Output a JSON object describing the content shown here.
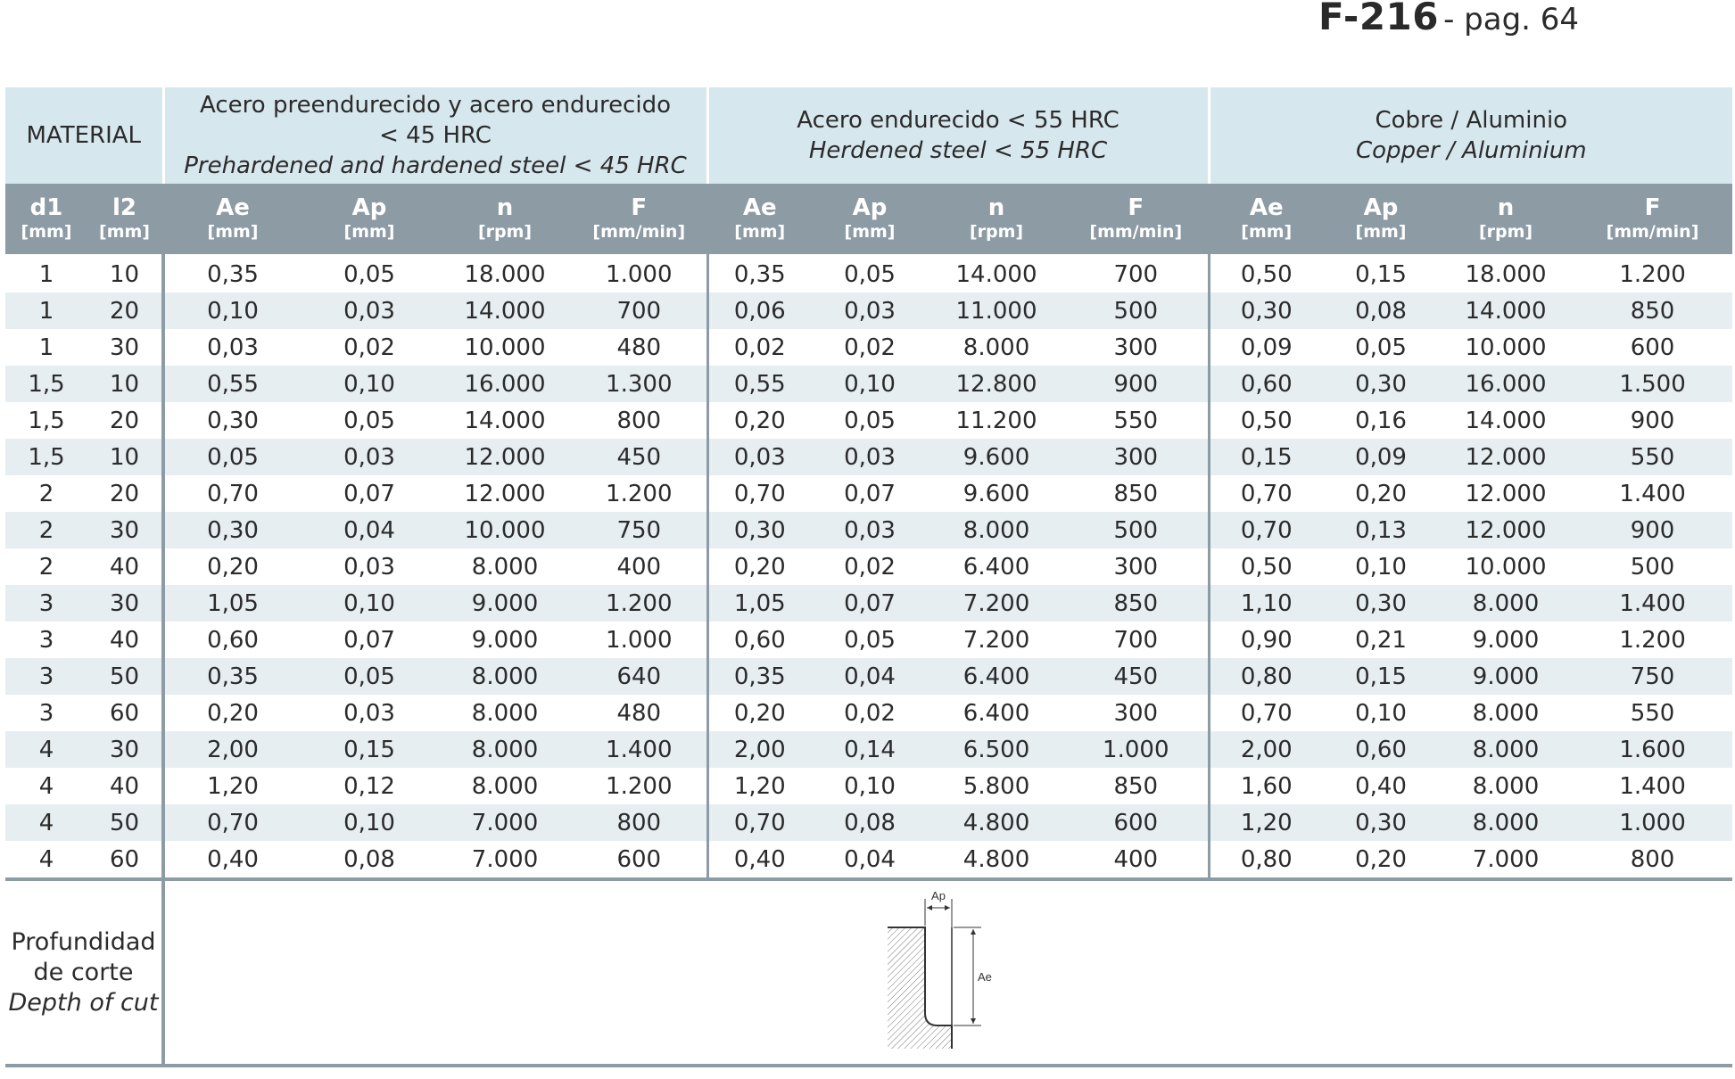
{
  "reference": {
    "code": "F-216",
    "page": "- pag. 64"
  },
  "table": {
    "material_label": "MATERIAL",
    "groups": [
      {
        "line1": "Acero preendurecido y acero endurecido",
        "line2": "< 45 HRC",
        "line3": "Prehardened and hardened steel < 45 HRC"
      },
      {
        "line1": "Acero endurecido < 55 HRC",
        "line2": "",
        "line3": "Herdened steel < 55 HRC"
      },
      {
        "line1": "Cobre / Aluminio",
        "line2": "",
        "line3": "Copper / Aluminium"
      }
    ],
    "columns": [
      {
        "sym": "d1",
        "unit": "[mm]"
      },
      {
        "sym": "l2",
        "unit": "[mm]"
      },
      {
        "sym": "Ae",
        "unit": "[mm]"
      },
      {
        "sym": "Ap",
        "unit": "[mm]"
      },
      {
        "sym": "n",
        "unit": "[rpm]"
      },
      {
        "sym": "F",
        "unit": "[mm/min]"
      }
    ],
    "rows": [
      [
        "1",
        "10",
        "0,35",
        "0,05",
        "18.000",
        "1.000",
        "0,35",
        "0,05",
        "14.000",
        "700",
        "0,50",
        "0,15",
        "18.000",
        "1.200"
      ],
      [
        "1",
        "20",
        "0,10",
        "0,03",
        "14.000",
        "700",
        "0,06",
        "0,03",
        "11.000",
        "500",
        "0,30",
        "0,08",
        "14.000",
        "850"
      ],
      [
        "1",
        "30",
        "0,03",
        "0,02",
        "10.000",
        "480",
        "0,02",
        "0,02",
        "8.000",
        "300",
        "0,09",
        "0,05",
        "10.000",
        "600"
      ],
      [
        "1,5",
        "10",
        "0,55",
        "0,10",
        "16.000",
        "1.300",
        "0,55",
        "0,10",
        "12.800",
        "900",
        "0,60",
        "0,30",
        "16.000",
        "1.500"
      ],
      [
        "1,5",
        "20",
        "0,30",
        "0,05",
        "14.000",
        "800",
        "0,20",
        "0,05",
        "11.200",
        "550",
        "0,50",
        "0,16",
        "14.000",
        "900"
      ],
      [
        "1,5",
        "10",
        "0,05",
        "0,03",
        "12.000",
        "450",
        "0,03",
        "0,03",
        "9.600",
        "300",
        "0,15",
        "0,09",
        "12.000",
        "550"
      ],
      [
        "2",
        "20",
        "0,70",
        "0,07",
        "12.000",
        "1.200",
        "0,70",
        "0,07",
        "9.600",
        "850",
        "0,70",
        "0,20",
        "12.000",
        "1.400"
      ],
      [
        "2",
        "30",
        "0,30",
        "0,04",
        "10.000",
        "750",
        "0,30",
        "0,03",
        "8.000",
        "500",
        "0,70",
        "0,13",
        "12.000",
        "900"
      ],
      [
        "2",
        "40",
        "0,20",
        "0,03",
        "8.000",
        "400",
        "0,20",
        "0,02",
        "6.400",
        "300",
        "0,50",
        "0,10",
        "10.000",
        "500"
      ],
      [
        "3",
        "30",
        "1,05",
        "0,10",
        "9.000",
        "1.200",
        "1,05",
        "0,07",
        "7.200",
        "850",
        "1,10",
        "0,30",
        "8.000",
        "1.400"
      ],
      [
        "3",
        "40",
        "0,60",
        "0,07",
        "9.000",
        "1.000",
        "0,60",
        "0,05",
        "7.200",
        "700",
        "0,90",
        "0,21",
        "9.000",
        "1.200"
      ],
      [
        "3",
        "50",
        "0,35",
        "0,05",
        "8.000",
        "640",
        "0,35",
        "0,04",
        "6.400",
        "450",
        "0,80",
        "0,15",
        "9.000",
        "750"
      ],
      [
        "3",
        "60",
        "0,20",
        "0,03",
        "8.000",
        "480",
        "0,20",
        "0,02",
        "6.400",
        "300",
        "0,70",
        "0,10",
        "8.000",
        "550"
      ],
      [
        "4",
        "30",
        "2,00",
        "0,15",
        "8.000",
        "1.400",
        "2,00",
        "0,14",
        "6.500",
        "1.000",
        "2,00",
        "0,60",
        "8.000",
        "1.600"
      ],
      [
        "4",
        "40",
        "1,20",
        "0,12",
        "8.000",
        "1.200",
        "1,20",
        "0,10",
        "5.800",
        "850",
        "1,60",
        "0,40",
        "8.000",
        "1.400"
      ],
      [
        "4",
        "50",
        "0,70",
        "0,10",
        "7.000",
        "800",
        "0,70",
        "0,08",
        "4.800",
        "600",
        "1,20",
        "0,30",
        "8.000",
        "1.000"
      ],
      [
        "4",
        "60",
        "0,40",
        "0,08",
        "7.000",
        "600",
        "0,40",
        "0,04",
        "4.800",
        "400",
        "0,80",
        "0,20",
        "7.000",
        "800"
      ]
    ]
  },
  "footer": {
    "line1": "Profundidad",
    "line2": "de corte",
    "line3": "Depth of cut",
    "diagram_labels": {
      "ap": "Ap",
      "ae": "Ae"
    }
  }
}
